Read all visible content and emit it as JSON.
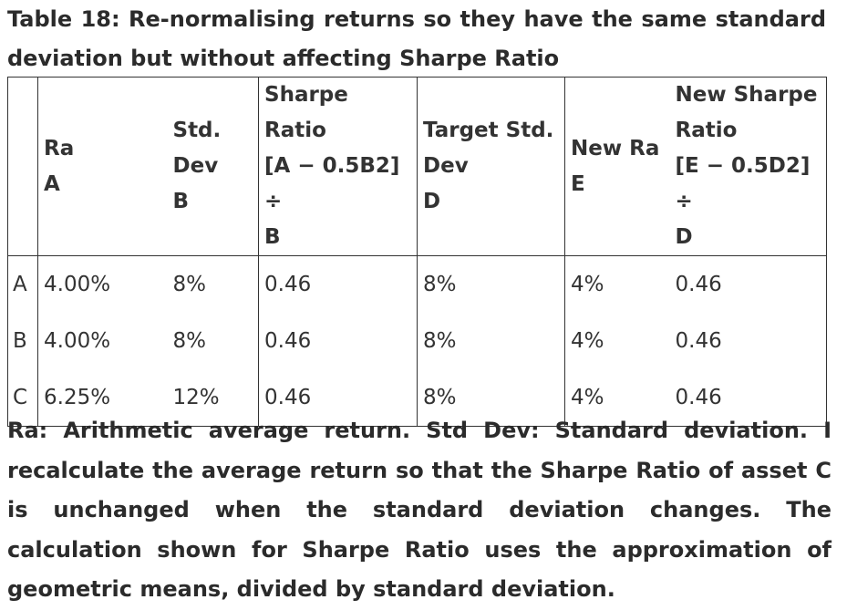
{
  "title": "Table 18: Re-normalising returns so they have the same standard deviation but without affecting Sharpe Ratio",
  "table": {
    "headers": [
      {
        "lines": [
          ""
        ]
      },
      {
        "lines": [
          "Ra",
          "A"
        ]
      },
      {
        "lines": [
          "Std.",
          "Dev",
          "B"
        ]
      },
      {
        "lines": [
          "Sharpe",
          "Ratio",
          "[A − 0.5B2] ÷",
          "B"
        ]
      },
      {
        "lines": [
          "Target Std.",
          "Dev",
          "D"
        ]
      },
      {
        "lines": [
          "New Ra",
          "E"
        ]
      },
      {
        "lines": [
          "New Sharpe",
          "Ratio",
          "[E − 0.5D2] ÷",
          "D"
        ]
      }
    ],
    "rows": [
      {
        "label": "A",
        "ra": "4.00%",
        "std_dev": "8%",
        "sharpe": "0.46",
        "target_std_dev": "8%",
        "new_ra": "4%",
        "new_sharpe": "0.46"
      },
      {
        "label": "B",
        "ra": "4.00%",
        "std_dev": "8%",
        "sharpe": "0.46",
        "target_std_dev": "8%",
        "new_ra": "4%",
        "new_sharpe": "0.46"
      },
      {
        "label": "C",
        "ra": "6.25%",
        "std_dev": "12%",
        "sharpe": "0.46",
        "target_std_dev": "8%",
        "new_ra": "4%",
        "new_sharpe": "0.46"
      }
    ]
  },
  "note": "Ra: Arithmetic average return. Std Dev: Standard deviation. I recalculate the average return so that the Sharpe Ratio of asset C is unchanged when the standard deviation changes. The calculation shown for Sharpe Ratio uses the approximation of geometric means, divided by standard deviation."
}
